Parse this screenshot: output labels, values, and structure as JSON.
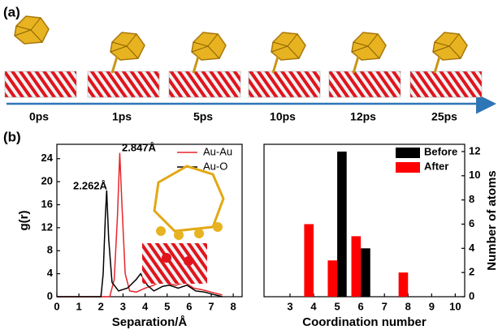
{
  "panel_a": {
    "label": "(a)",
    "frames": [
      "0ps",
      "1ps",
      "5ps",
      "10ps",
      "12ps",
      "25ps"
    ]
  },
  "panel_b": {
    "label": "(b)"
  },
  "chart_data": [
    {
      "type": "line",
      "xlabel": "Separation/Å",
      "ylabel": "g(r)",
      "xlim": [
        0,
        8.4
      ],
      "ylim": [
        0,
        26.5
      ],
      "xticks": [
        0,
        1,
        2,
        3,
        4,
        5,
        6,
        7,
        8
      ],
      "yticks": [
        0,
        4,
        8,
        12,
        16,
        20,
        24
      ],
      "legend": "upper right",
      "annotations": [
        "2.847Å",
        "2.262Å"
      ],
      "series": [
        {
          "name": "Au-Au",
          "color": "#e8262a",
          "x": [
            0,
            2.4,
            2.6,
            2.75,
            2.85,
            2.95,
            3.1,
            3.3,
            3.6,
            4.0,
            4.4,
            4.8,
            5.1,
            5.4,
            5.8,
            6.2,
            6.6,
            7.0,
            7.5
          ],
          "values": [
            0,
            0,
            3,
            14,
            25,
            16,
            4,
            1,
            0.8,
            1.5,
            2,
            3,
            2.2,
            2,
            2.5,
            1.5,
            1.2,
            0.8,
            0.3
          ]
        },
        {
          "name": "Au-O",
          "color": "#000000",
          "x": [
            0,
            2.0,
            2.1,
            2.2,
            2.26,
            2.35,
            2.5,
            2.8,
            3.2,
            3.6,
            3.8,
            4.1,
            4.4,
            4.8,
            5.1,
            5.5,
            5.9,
            6.3,
            6.7,
            7.1,
            7.5
          ],
          "values": [
            0,
            0,
            4,
            14,
            18.5,
            10,
            2.5,
            1,
            1.5,
            3,
            4,
            2,
            1,
            1.8,
            2,
            1.5,
            2,
            1,
            0.8,
            0.4,
            0
          ]
        }
      ]
    },
    {
      "type": "bar",
      "xlabel": "Coordination number",
      "ylabel": "Number of atoms",
      "xlim": [
        1.9,
        10.4
      ],
      "ylim": [
        0,
        12.6
      ],
      "xticks": [
        3,
        4,
        5,
        6,
        7,
        8,
        9,
        10
      ],
      "yticks": [
        0,
        2,
        4,
        6,
        8,
        10,
        12
      ],
      "legend": "upper right",
      "series": [
        {
          "name": "Before",
          "color": "#000000",
          "x": [
            5.2,
            6.2
          ],
          "values": [
            12,
            4
          ]
        },
        {
          "name": "After",
          "color": "#ff0000",
          "x": [
            3.8,
            4.8,
            5.8,
            7.8
          ],
          "values": [
            6,
            3,
            5,
            2
          ]
        }
      ]
    }
  ]
}
